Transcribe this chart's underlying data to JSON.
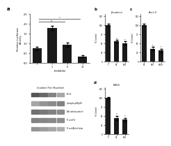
{
  "panel_a": {
    "ylabel": "Relative Luciferase\nActivity",
    "bar_labels": [
      "",
      "1",
      "5",
      "10"
    ],
    "xlabel": "LY294002",
    "values": [
      0.75,
      1.8,
      0.95,
      0.35
    ],
    "ylim": [
      0,
      2.5
    ],
    "yticks": [
      0.0,
      0.5,
      1.0,
      1.5,
      2.0,
      2.5
    ],
    "bar_color": "#1a1a1a",
    "error_bars": [
      0.08,
      0.12,
      0.1,
      0.06
    ]
  },
  "panel_b": {
    "title": "β-catenin",
    "ylabel": "% Control",
    "categories": [
      "T",
      "S1",
      "S10"
    ],
    "values": [
      100,
      55,
      50
    ],
    "error_bars": [
      3,
      4,
      5
    ],
    "ylim": [
      0,
      130
    ],
    "yticks": [
      0,
      25,
      50,
      75,
      100,
      125
    ],
    "bar_color": "#1a1a1a"
  },
  "panel_c": {
    "title": "Axin 2",
    "ylabel": "% Control",
    "categories": [
      "S1",
      "S10",
      "S100"
    ],
    "values": [
      100,
      35,
      30
    ],
    "error_bars": [
      3,
      4,
      5
    ],
    "ylim": [
      0,
      130
    ],
    "yticks": [
      0,
      25,
      50,
      75,
      100,
      125
    ],
    "bar_color": "#1a1a1a"
  },
  "panel_d": {
    "title": "NKD2",
    "ylabel": "% Control",
    "categories": [
      "T",
      "S1",
      "S10"
    ],
    "values": [
      100,
      45,
      40
    ],
    "error_bars": [
      3,
      6,
      5
    ],
    "ylim": [
      0,
      130
    ],
    "yticks": [
      0,
      25,
      50,
      75,
      100,
      125
    ],
    "bar_color": "#1a1a1a"
  },
  "background_color": "#ffffff",
  "wb_title": "Incubation Time (Hours/min)",
  "wb_lane_labels": [
    "PI-3-K",
    "phospho p85/p55",
    "Akt (whole protein)",
    "PI and HG",
    "PI and Aktinhibitor"
  ]
}
